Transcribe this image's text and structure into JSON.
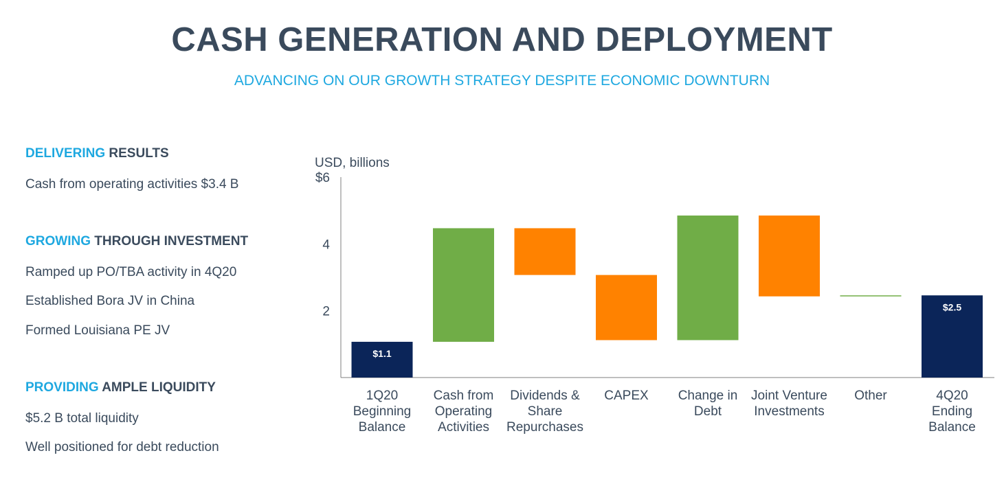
{
  "header": {
    "title": "CASH GENERATION AND DEPLOYMENT",
    "subtitle": "ADVANCING ON OUR GROWTH STRATEGY DESPITE ECONOMIC DOWNTURN"
  },
  "sections": [
    {
      "highlight": "DELIVERING",
      "rest": " RESULTS",
      "items": [
        "Cash from operating activities $3.4 B"
      ]
    },
    {
      "highlight": "GROWING",
      "rest": " THROUGH INVESTMENT",
      "items": [
        "Ramped up PO/TBA activity in 4Q20",
        "Established Bora JV in China",
        "Formed Louisiana PE JV"
      ]
    },
    {
      "highlight": "PROVIDING",
      "rest": " AMPLE LIQUIDITY",
      "items": [
        "$5.2 B total liquidity",
        "Well positioned for debt reduction"
      ]
    }
  ],
  "colors": {
    "title": "#3a4a5c",
    "accent": "#1ea8e0",
    "total": "#0b2559",
    "increase": "#70ad47",
    "decrease": "#ff8200"
  },
  "chart_data": {
    "type": "bar",
    "subtype": "waterfall",
    "unit_label": "USD, billions",
    "yticks": [
      "$6",
      "4",
      "2"
    ],
    "ytick_values": [
      6,
      4,
      2
    ],
    "ylim": [
      0,
      6
    ],
    "grid": false,
    "categories": [
      [
        "1Q20",
        "Beginning",
        "Balance"
      ],
      [
        "Cash from",
        "Operating",
        "Activities"
      ],
      [
        "Dividends &",
        "Share",
        "Repurchases"
      ],
      [
        "CAPEX"
      ],
      [
        "Change in",
        "Debt"
      ],
      [
        "Joint Venture",
        "Investments"
      ],
      [
        "Other"
      ],
      [
        "4Q20",
        "Ending",
        "Balance"
      ]
    ],
    "bars": [
      {
        "kind": "total",
        "low": 0,
        "high": 1.07,
        "label": "$1.1"
      },
      {
        "kind": "increase",
        "low": 1.07,
        "high": 4.47
      },
      {
        "kind": "decrease",
        "low": 3.07,
        "high": 4.47
      },
      {
        "kind": "decrease",
        "low": 1.12,
        "high": 3.07
      },
      {
        "kind": "increase",
        "low": 1.12,
        "high": 4.85
      },
      {
        "kind": "decrease",
        "low": 2.43,
        "high": 4.85
      },
      {
        "kind": "increase",
        "low": 2.43,
        "high": 2.46
      },
      {
        "kind": "total",
        "low": 0,
        "high": 2.46,
        "label": "$2.5"
      }
    ]
  }
}
